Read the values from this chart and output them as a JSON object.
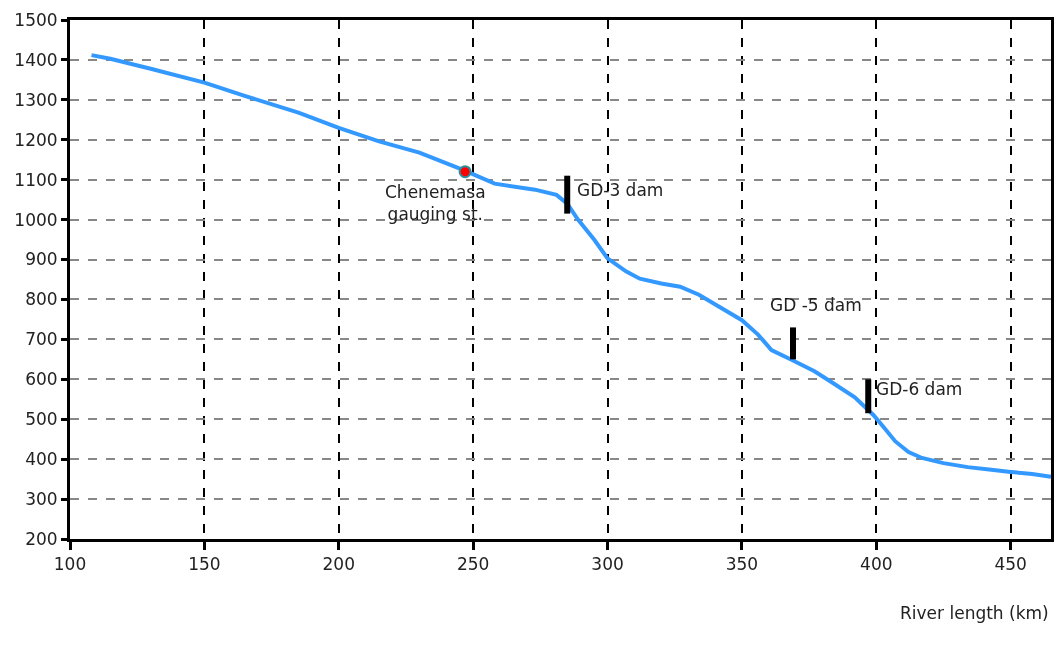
{
  "chart_data": {
    "type": "line",
    "xlabel": "River length (km)",
    "xlim": [
      100,
      465
    ],
    "xticks": [
      100,
      150,
      200,
      250,
      300,
      350,
      400,
      450
    ],
    "ylim": [
      200,
      1500
    ],
    "yticks": [
      200,
      300,
      400,
      500,
      600,
      700,
      800,
      900,
      1000,
      1100,
      1200,
      1300,
      1400,
      1500
    ],
    "grid": true,
    "series": [
      {
        "color": "#3399ff",
        "x": [
          108,
          115,
          130,
          150,
          165,
          185,
          200,
          215,
          230,
          246,
          258,
          273,
          281,
          285,
          289,
          295,
          300,
          307,
          312,
          320,
          327,
          334,
          342,
          350,
          356,
          361,
          369,
          377,
          384,
          392,
          399,
          403,
          407,
          412,
          417,
          425,
          434,
          442,
          450,
          458,
          465
        ],
        "values": [
          1412,
          1403,
          1378,
          1343,
          1310,
          1268,
          1230,
          1196,
          1168,
          1125,
          1090,
          1075,
          1062,
          1040,
          1000,
          950,
          903,
          870,
          852,
          840,
          832,
          812,
          780,
          748,
          712,
          673,
          647,
          620,
          590,
          555,
          510,
          478,
          445,
          418,
          403,
          390,
          380,
          374,
          368,
          363,
          356
        ]
      },
      {
        "color": "#000000",
        "x": [
          285,
          285
        ],
        "values": [
          1015,
          1110
        ]
      },
      {
        "color": "#000000",
        "x": [
          369,
          369
        ],
        "values": [
          650,
          730
        ]
      },
      {
        "color": "#000000",
        "x": [
          397,
          397
        ],
        "values": [
          515,
          600
        ]
      },
      {
        "type": "scatter",
        "color": "#ff0000",
        "x": [
          247
        ],
        "values": [
          1120
        ]
      }
    ],
    "annotations": [
      {
        "text": "Chenemasa\ngauging st.",
        "x": 247,
        "y": 1120
      },
      {
        "text": "GD-3 dam",
        "x": 285,
        "y": 1110
      },
      {
        "text": "GD -5 dam",
        "x": 369,
        "y": 730
      },
      {
        "text": "GD-6 dam",
        "x": 397,
        "y": 600
      }
    ]
  }
}
